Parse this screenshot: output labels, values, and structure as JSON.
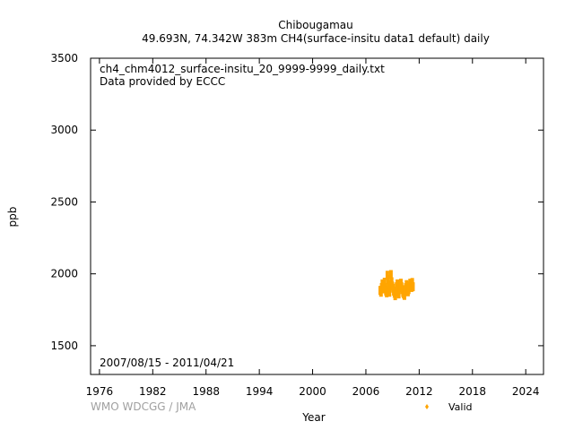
{
  "title": {
    "line1": "Chibougamau",
    "line2": "49.693N, 74.342W 383m    CH4(surface-insitu data1 default) daily"
  },
  "annotations": {
    "filename": "ch4_chm4012_surface-insitu_20_9999-9999_daily.txt",
    "provider": "Data provided by ECCC",
    "period": "2007/08/15 - 2011/04/21"
  },
  "footer": {
    "credit": "WMO WDCGG / JMA"
  },
  "colors": {
    "valid": "#ffa500",
    "frame": "#000000",
    "credit": "#a0a0a0"
  },
  "chart_data": {
    "type": "scatter",
    "xlabel": "Year",
    "ylabel": "ppb",
    "xlim": [
      1975,
      2026
    ],
    "ylim": [
      1300,
      3500
    ],
    "xticks": [
      1976,
      1982,
      1988,
      1994,
      2000,
      2006,
      2012,
      2018,
      2024
    ],
    "yticks": [
      1500,
      2000,
      2500,
      3000,
      3500
    ],
    "grid": false,
    "legend": {
      "position": "bottom-right",
      "entries": [
        "Valid"
      ]
    },
    "series": [
      {
        "name": "Valid",
        "x": [
          2007.62,
          2007.7,
          2007.78,
          2007.86,
          2007.94,
          2008.02,
          2008.1,
          2008.18,
          2008.26,
          2008.34,
          2008.42,
          2008.5,
          2008.58,
          2008.66,
          2008.74,
          2008.82,
          2008.9,
          2008.98,
          2009.06,
          2009.14,
          2009.22,
          2009.3,
          2009.38,
          2009.46,
          2009.54,
          2009.62,
          2009.7,
          2009.78,
          2009.86,
          2009.94,
          2010.02,
          2010.1,
          2010.18,
          2010.26,
          2010.34,
          2010.42,
          2010.5,
          2010.58,
          2010.66,
          2010.74,
          2010.82,
          2010.9,
          2010.98,
          2011.06,
          2011.14,
          2011.22,
          2011.3
        ],
        "y": [
          1885,
          1872,
          1905,
          1930,
          1895,
          1920,
          1942,
          1905,
          1880,
          1868,
          1990,
          1960,
          1900,
          1872,
          1925,
          1995,
          1945,
          1915,
          1900,
          1880,
          1865,
          1848,
          1875,
          1910,
          1930,
          1880,
          1860,
          1905,
          1920,
          1935,
          1910,
          1890,
          1870,
          1860,
          1850,
          1880,
          1905,
          1925,
          1895,
          1875,
          1890,
          1915,
          1935,
          1920,
          1905,
          1940,
          1910
        ]
      }
    ]
  }
}
